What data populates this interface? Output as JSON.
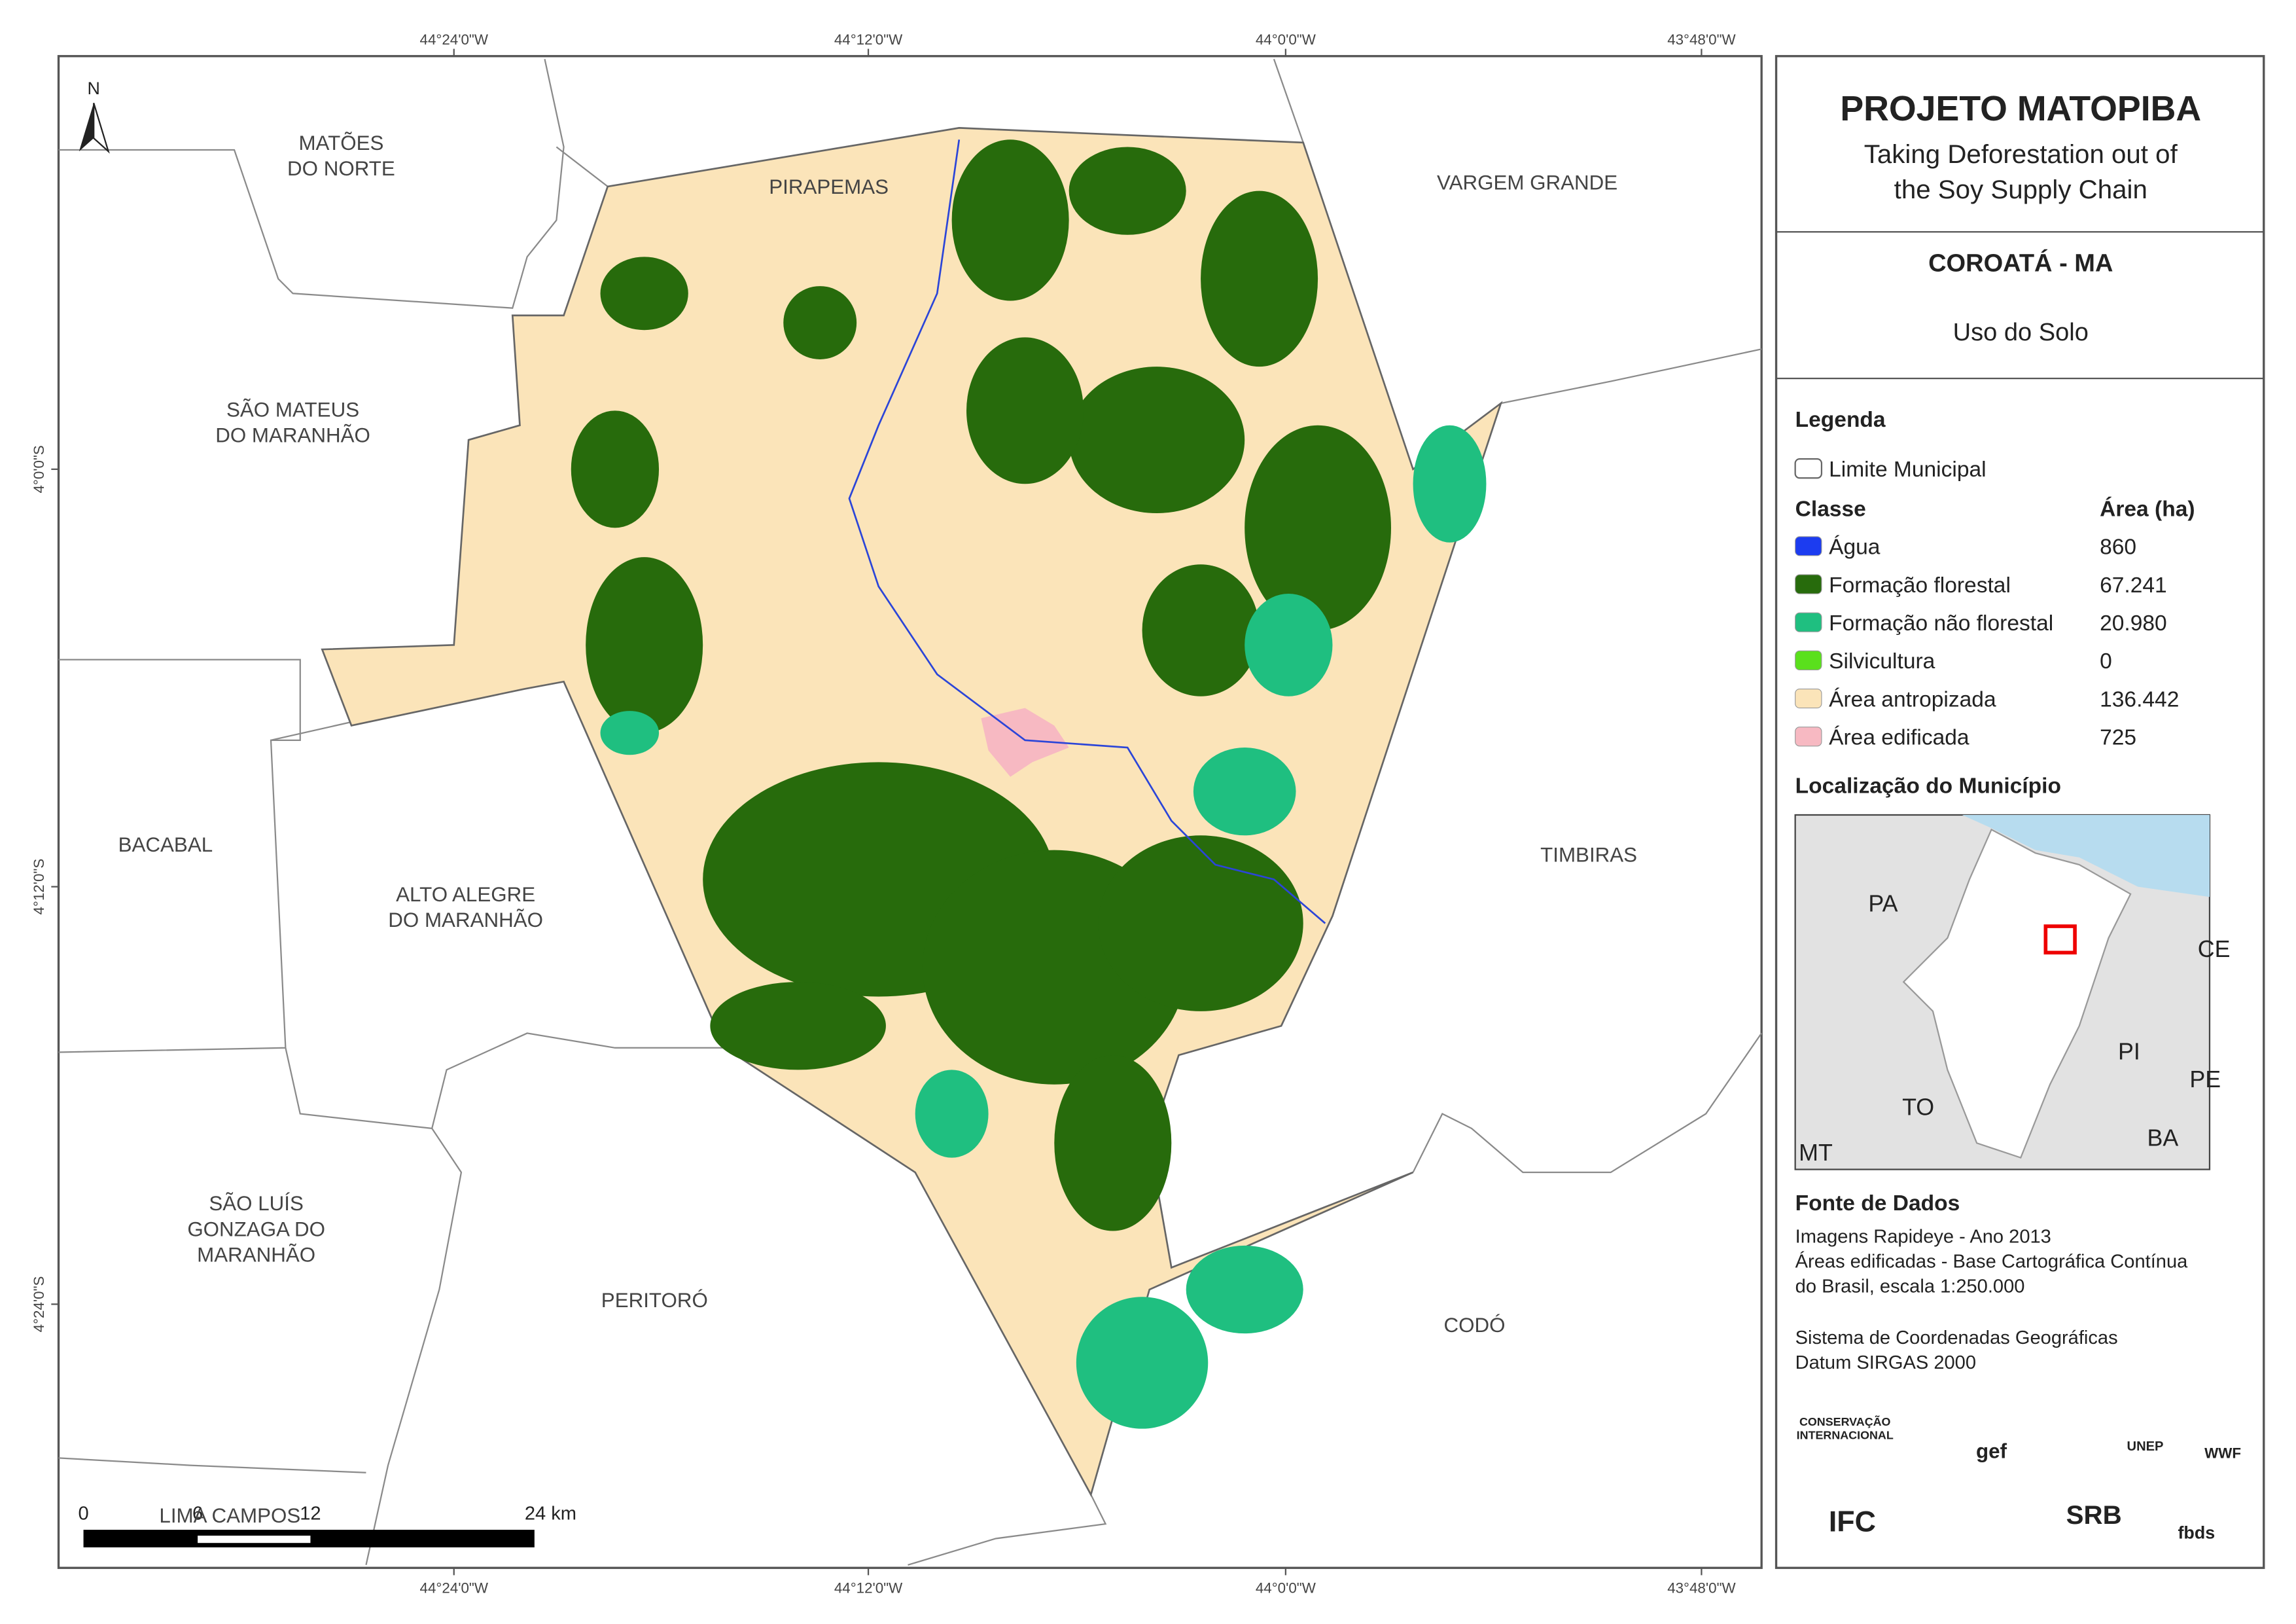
{
  "panel": {
    "title": "PROJETO MATOPIBA",
    "subtitle": [
      "Taking Deforestation out of",
      "the Soy Supply Chain"
    ],
    "municipality": "COROATÁ - MA",
    "theme": "Uso do Solo",
    "legend_title": "Legenda",
    "boundary_label": "Limite Municipal",
    "class_header": "Classe",
    "area_header": "Área (ha)",
    "classes": [
      {
        "name": "Água",
        "area": "860",
        "color": "#1c3cf0"
      },
      {
        "name": "Formação florestal",
        "area": "67.241",
        "color": "#276b0c"
      },
      {
        "name": "Formação não florestal",
        "area": "20.980",
        "color": "#1fbf80"
      },
      {
        "name": "Silvicultura",
        "area": "0",
        "color": "#5ae01c"
      },
      {
        "name": "Área antropizada",
        "area": "136.442",
        "color": "#fbe4b9"
      },
      {
        "name": "Área edificada",
        "area": "725",
        "color": "#f7b9c2"
      }
    ],
    "location_title": "Localização do Município",
    "inset_labels": [
      "PA",
      "CE",
      "PI",
      "PE",
      "TO",
      "BA",
      "MT"
    ],
    "sources_title": "Fonte de Dados",
    "sources": [
      "Imagens Rapideye - Ano 2013",
      "Áreas edificadas - Base Cartográfica Contínua",
      "do Brasil, escala 1:250.000"
    ],
    "crs": [
      "Sistema de Coordenadas Geográficas",
      "Datum SIRGAS 2000"
    ],
    "logos": [
      "CONSERVAÇÃO",
      "INTERNACIONAL",
      "gef",
      "UNEP",
      "WWF",
      "IFC",
      "SRB",
      "fbds"
    ]
  },
  "map": {
    "north": "N",
    "lon_labels": [
      "44°24'0\"W",
      "44°12'0\"W",
      "44°0'0\"W",
      "43°48'0\"W"
    ],
    "lat_labels": [
      "4°0'0\"S",
      "4°12'0\"S",
      "4°24'0\"S"
    ],
    "places": [
      {
        "lines": [
          "MATÕES",
          "DO NORTE"
        ]
      },
      {
        "lines": [
          "PIRAPEMAS"
        ]
      },
      {
        "lines": [
          "VARGEM GRANDE"
        ]
      },
      {
        "lines": [
          "SÃO MATEUS",
          "DO MARANHÃO"
        ]
      },
      {
        "lines": [
          "BACABAL"
        ]
      },
      {
        "lines": [
          "ALTO ALEGRE",
          "DO MARANHÃO"
        ]
      },
      {
        "lines": [
          "TIMBIRAS"
        ]
      },
      {
        "lines": [
          "SÃO LUÍS",
          "GONZAGA DO",
          "MARANHÃO"
        ]
      },
      {
        "lines": [
          "PERITORÓ"
        ]
      },
      {
        "lines": [
          "CODÓ"
        ]
      },
      {
        "lines": [
          "LIMA CAMPOS"
        ]
      }
    ],
    "scale_labels": [
      "0",
      "6",
      "12",
      "24 km"
    ]
  }
}
